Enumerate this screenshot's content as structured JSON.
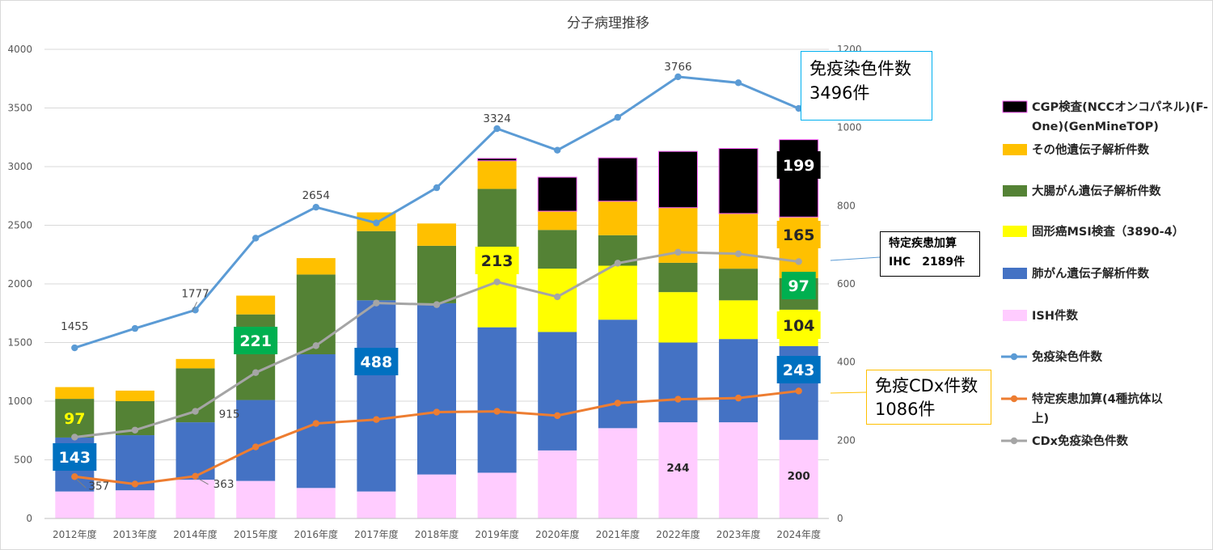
{
  "chart_data": {
    "type": "bar",
    "title": "分子病理推移",
    "categories": [
      "2012年度",
      "2013年度",
      "2014年度",
      "2015年度",
      "2016年度",
      "2017年度",
      "2018年度",
      "2019年度",
      "2020年度",
      "2021年度",
      "2022年度",
      "2023年度",
      "2024年度"
    ],
    "y_left": {
      "ylim": [
        0,
        4000
      ],
      "ticks": [
        "0",
        "500",
        "1000",
        "1500",
        "2000",
        "2500",
        "3000",
        "3500",
        "4000"
      ]
    },
    "y_right": {
      "ylim": [
        0,
        1200
      ],
      "ticks": [
        "0",
        "200",
        "400",
        "600",
        "800",
        "1000",
        "1200"
      ]
    },
    "bar_series": [
      {
        "name": "ISH件数",
        "color": "#ffccff",
        "values": [
          230,
          240,
          330,
          320,
          260,
          230,
          375,
          390,
          580,
          770,
          820,
          820,
          670
        ]
      },
      {
        "name": "肺がん遺伝子解析件数",
        "color": "#4472c4",
        "values": [
          460,
          470,
          490,
          690,
          1140,
          1630,
          1460,
          1240,
          1010,
          925,
          680,
          710,
          800
        ]
      },
      {
        "name": "固形癌MSI検査（3890-4）",
        "color": "#ffff00",
        "values": [
          0,
          0,
          0,
          0,
          0,
          0,
          0,
          500,
          540,
          460,
          430,
          330,
          310
        ]
      },
      {
        "name": "大腸がん遺伝子解析件数",
        "color": "#548235",
        "values": [
          330,
          290,
          460,
          730,
          680,
          590,
          490,
          680,
          330,
          260,
          250,
          270,
          270
        ]
      },
      {
        "name": "その他遺伝子解析件数",
        "color": "#ffc000",
        "values": [
          100,
          90,
          80,
          160,
          140,
          160,
          190,
          240,
          160,
          290,
          470,
          470,
          520
        ]
      },
      {
        "name": "CGP検査(NCCオンコパネル)(F-One)(GenMineTOP)",
        "color": "#000000",
        "values": [
          0,
          0,
          0,
          0,
          0,
          0,
          0,
          20,
          290,
          370,
          480,
          555,
          660
        ]
      }
    ],
    "line_series": [
      {
        "name": "免疫染色件数",
        "color": "#5b9bd5",
        "axis": "left",
        "values": [
          1455,
          1620,
          1777,
          2390,
          2654,
          2520,
          2820,
          3324,
          3140,
          3420,
          3766,
          3715,
          3496
        ]
      },
      {
        "name": "特定疾患加算(4種抗体以上)",
        "color": "#ed7d31",
        "axis": "right",
        "values": [
          107,
          88,
          108,
          183,
          243,
          253,
          272,
          274,
          263,
          295,
          305,
          308,
          326
        ]
      },
      {
        "name": "CDx免疫染色件数",
        "color": "#a5a5a5",
        "axis": "right",
        "values": [
          208,
          226,
          274,
          373,
          442,
          551,
          547,
          605,
          567,
          653,
          681,
          677,
          657
        ]
      }
    ],
    "point_labels": [
      {
        "series": 0,
        "index": 0,
        "text": "1455"
      },
      {
        "series": 0,
        "index": 2,
        "text": "1777"
      },
      {
        "series": 0,
        "index": 4,
        "text": "2654"
      },
      {
        "series": 0,
        "index": 7,
        "text": "3324"
      },
      {
        "series": 0,
        "index": 10,
        "text": "3766"
      },
      {
        "series": 1,
        "index": 0,
        "text": "357"
      },
      {
        "series": 1,
        "index": 2,
        "text": "363"
      },
      {
        "series": 2,
        "index": 2,
        "text": "915"
      }
    ],
    "boxed_labels": [
      {
        "text": "143",
        "bg": "#0070c0",
        "fg": "#ffffff",
        "index": 0,
        "y": 565
      },
      {
        "text": "97",
        "bg": "#548235",
        "fg": "#ffff00",
        "index": 0,
        "y": 517
      },
      {
        "text": "221",
        "bg": "#00b050",
        "fg": "#ffffff",
        "index": 3,
        "y": 421
      },
      {
        "text": "488",
        "bg": "#0070c0",
        "fg": "#ffffff",
        "index": 5,
        "y": 447
      },
      {
        "text": "213",
        "bg": "#ffff00",
        "fg": "#262626",
        "index": 7,
        "y": 322
      },
      {
        "text": "199",
        "bg": "#000000",
        "fg": "#ffffff",
        "index": 12,
        "y": 204
      },
      {
        "text": "165",
        "bg": "#ffc000",
        "fg": "#262626",
        "index": 12,
        "y": 290
      },
      {
        "text": "97",
        "bg": "#00b050",
        "fg": "#ffffff",
        "index": 12,
        "y": 353
      },
      {
        "text": "104",
        "bg": "#ffff00",
        "fg": "#262626",
        "index": 12,
        "y": 402
      },
      {
        "text": "243",
        "bg": "#0070c0",
        "fg": "#ffffff",
        "index": 12,
        "y": 457
      }
    ],
    "small_labels": [
      {
        "text": "244",
        "index": 10,
        "y": 583
      },
      {
        "text": "200",
        "index": 12,
        "y": 593
      }
    ],
    "legend": {
      "position": "right",
      "entries": [
        {
          "label_lines": [
            "CGP検査(NCCオンコパネル)(F-",
            "One)(GenMineTOP)"
          ],
          "kind": "bar",
          "color": "#000000",
          "border": "#ff66ff"
        },
        {
          "label_lines": [
            "その他遺伝子解析件数"
          ],
          "kind": "bar",
          "color": "#ffc000"
        },
        {
          "label_lines": [
            "大腸がん遺伝子解析件数"
          ],
          "kind": "bar",
          "color": "#548235"
        },
        {
          "label_lines": [
            "固形癌MSI検査（3890-4）"
          ],
          "kind": "bar",
          "color": "#ffff00"
        },
        {
          "label_lines": [
            "肺がん遺伝子解析件数"
          ],
          "kind": "bar",
          "color": "#4472c4"
        },
        {
          "label_lines": [
            "ISH件数"
          ],
          "kind": "bar",
          "color": "#ffccff"
        },
        {
          "label_lines": [
            "免疫染色件数"
          ],
          "kind": "line",
          "color": "#5b9bd5"
        },
        {
          "label_lines": [
            "特定疾患加算(4種抗体以",
            "上)"
          ],
          "kind": "line",
          "color": "#ed7d31"
        },
        {
          "label_lines": [
            "CDx免疫染色件数"
          ],
          "kind": "line",
          "color": "#a5a5a5"
        }
      ]
    }
  },
  "callouts": {
    "immuno": {
      "line1": "免疫染色件数",
      "line2": "3496件",
      "border": "#00b0f0"
    },
    "tokutei": {
      "line1": "特定疾患加算",
      "line2": "IHC　2189件",
      "border": "#000000"
    },
    "cdx": {
      "line1": "免疫CDx件数",
      "line2": "1086件",
      "border": "#ffc000"
    }
  }
}
